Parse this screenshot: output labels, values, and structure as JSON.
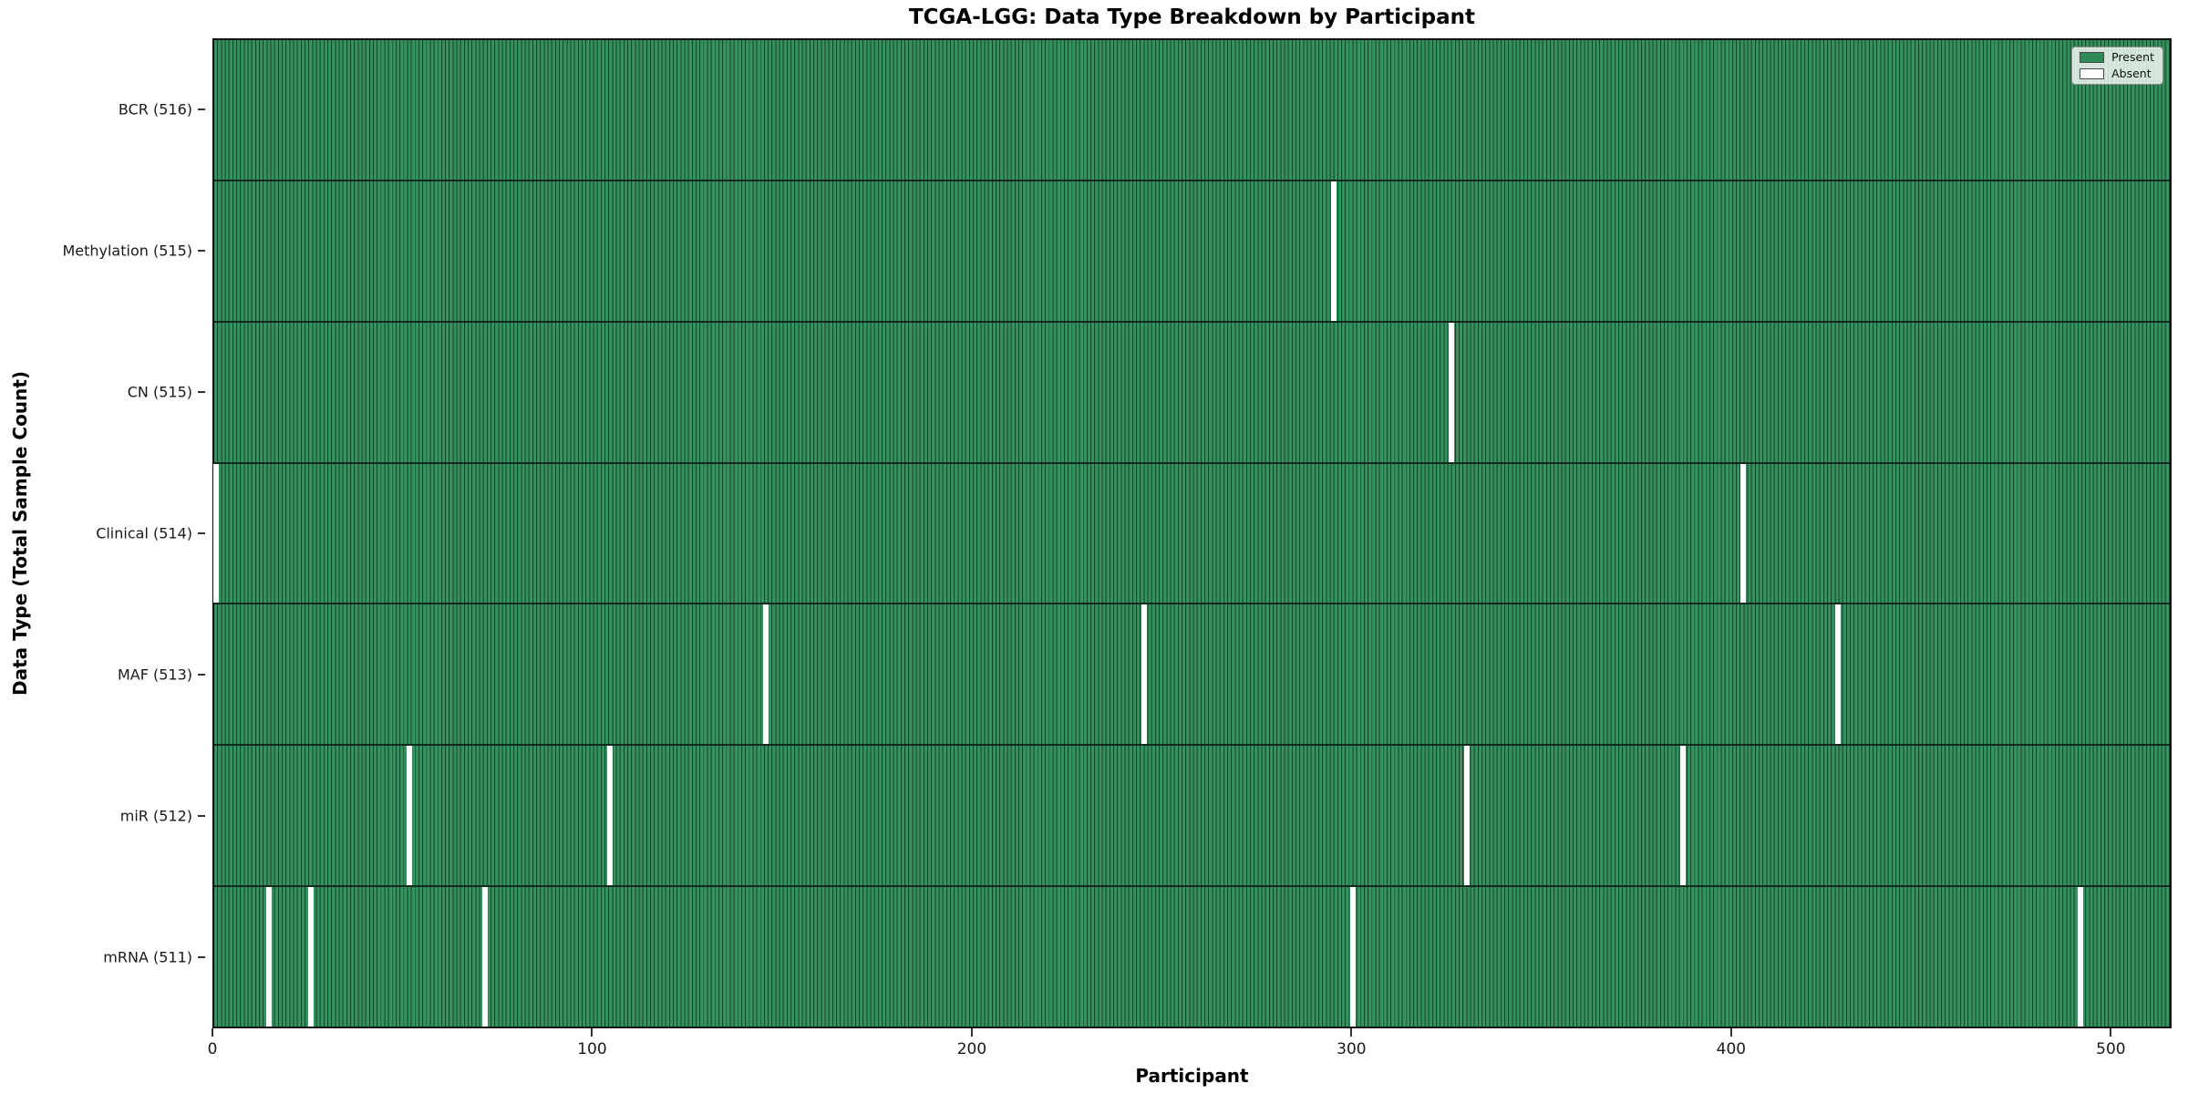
{
  "title": "TCGA-LGG: Data Type Breakdown by Participant",
  "chart_data": {
    "type": "heatmap",
    "title": "TCGA-LGG: Data Type Breakdown by Participant",
    "xlabel": "Participant",
    "ylabel": "Data Type (Total Sample Count)",
    "x_ticks": [
      0,
      100,
      200,
      300,
      400,
      500
    ],
    "x_range": [
      0,
      516
    ],
    "n_participants": 516,
    "grid": false,
    "legend_position": "upper right",
    "legend": [
      {
        "label": "Present",
        "color": "#2e8b57"
      },
      {
        "label": "Absent",
        "color": "#ffffff"
      }
    ],
    "rows": [
      {
        "label": "BCR (516)",
        "data_type": "BCR",
        "present_count": 516,
        "absent_participants": []
      },
      {
        "label": "Methylation (515)",
        "data_type": "Methylation",
        "present_count": 515,
        "absent_participants": [
          295
        ]
      },
      {
        "label": "CN (515)",
        "data_type": "CN",
        "present_count": 515,
        "absent_participants": [
          326
        ]
      },
      {
        "label": "Clinical (514)",
        "data_type": "Clinical",
        "present_count": 514,
        "absent_participants": [
          0,
          403
        ]
      },
      {
        "label": "MAF (513)",
        "data_type": "MAF",
        "present_count": 513,
        "absent_participants": [
          145,
          245,
          428
        ]
      },
      {
        "label": "miR (512)",
        "data_type": "miR",
        "present_count": 512,
        "absent_participants": [
          51,
          104,
          330,
          387
        ]
      },
      {
        "label": "mRNA (511)",
        "data_type": "mRNA",
        "present_count": 511,
        "absent_participants": [
          14,
          25,
          71,
          300,
          492
        ]
      }
    ],
    "colors": {
      "present": "#2e8b57",
      "absent": "#ffffff",
      "bar_edge": "#17472e",
      "row_separator": "#14251b",
      "tick": "#333333",
      "text": "#1a1a1a"
    }
  }
}
